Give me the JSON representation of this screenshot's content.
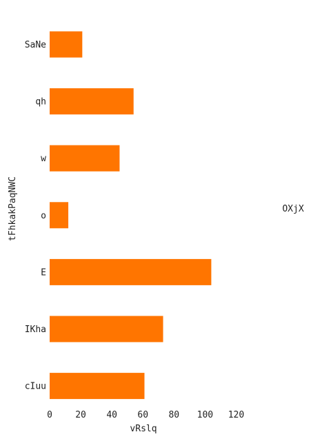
{
  "chart_data": {
    "type": "bar",
    "orientation": "horizontal",
    "title": "",
    "xlabel": "vRslq",
    "ylabel": "tFhkakPaqNWC",
    "categories": [
      "SaNe",
      "qh",
      "w",
      "o",
      "E",
      "IKha",
      "cIuu"
    ],
    "series": [
      {
        "name": "OXjX",
        "values": [
          21,
          54,
          45,
          12,
          104,
          73,
          61
        ]
      }
    ],
    "xlim": [
      0,
      130
    ],
    "xticks": [
      0,
      20,
      40,
      60,
      80,
      100,
      120
    ],
    "grid": false,
    "legend_position": "right",
    "colors": {
      "bar": "#ff7500",
      "text": "#222222",
      "background": "#ffffff"
    }
  }
}
